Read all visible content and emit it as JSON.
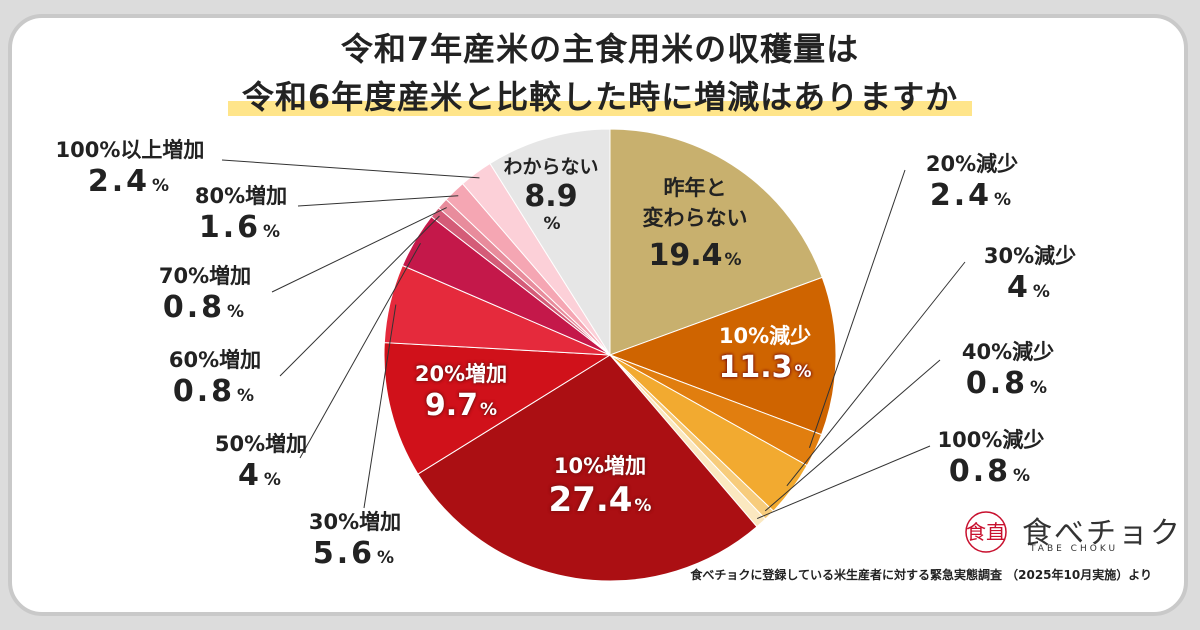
{
  "title_line1": "令和7年産米の主食用米の収穫量は",
  "title_line2": "令和6年度産米と比較した時に増減はありますか",
  "source": "食べチョクに登録している米生産者に対する緊急実態調査 （2025年10月実施）より",
  "logo": {
    "text": "食べチョク",
    "sub": "TABE CHOKU",
    "mark": "食直"
  },
  "chart_data": {
    "type": "pie",
    "unit": "%",
    "slices": [
      {
        "label": "昨年と変わらない",
        "value": 19.4,
        "color": "#c8b06e"
      },
      {
        "label": "10%減少",
        "value": 11.3,
        "color": "#cf6400"
      },
      {
        "label": "20%減少",
        "value": 2.4,
        "color": "#e17e0f"
      },
      {
        "label": "30%減少",
        "value": 4,
        "color": "#f2aa30"
      },
      {
        "label": "40%減少",
        "value": 0.8,
        "color": "#f7cc7c"
      },
      {
        "label": "100%減少",
        "value": 0.8,
        "color": "#fbe8c0"
      },
      {
        "label": "10%増加",
        "value": 27.4,
        "color": "#ab0f13"
      },
      {
        "label": "20%増加",
        "value": 9.7,
        "color": "#d0111a"
      },
      {
        "label": "30%増加",
        "value": 5.6,
        "color": "#e52a3c"
      },
      {
        "label": "50%増加",
        "value": 4,
        "color": "#c4184a"
      },
      {
        "label": "60%増加",
        "value": 0.8,
        "color": "#d45c78"
      },
      {
        "label": "70%増加",
        "value": 0.8,
        "color": "#e88c9c"
      },
      {
        "label": "80%増加",
        "value": 1.6,
        "color": "#f5a6b3"
      },
      {
        "label": "100%以上増加",
        "value": 2.4,
        "color": "#fcd0d8"
      },
      {
        "label": "わからない",
        "value": 8.9,
        "color": "#e6e6e6"
      }
    ]
  },
  "labels": {
    "unchanged": {
      "cat_a": "昨年と",
      "cat_b": "変わらない",
      "val": "19.4",
      "pct": "%"
    },
    "dec10": {
      "cat": "10%減少",
      "val": "11.3",
      "pct": "%"
    },
    "inc10": {
      "cat": "10%増加",
      "val": "27.4",
      "pct": "%"
    },
    "inc20": {
      "cat": "20%増加",
      "val": "9.7",
      "pct": "%"
    },
    "unknown": {
      "cat": "わからない",
      "val": "8.9",
      "pct": "%"
    },
    "dec20": {
      "cat": "20%減少",
      "val": "2.4",
      "pct": "%"
    },
    "dec30": {
      "cat": "30%減少",
      "val": "4",
      "pct": "%"
    },
    "dec40": {
      "cat": "40%減少",
      "val": "0.8",
      "pct": "%"
    },
    "dec100": {
      "cat": "100%減少",
      "val": "0.8",
      "pct": "%"
    },
    "inc100": {
      "cat": "100%以上増加",
      "val": "2.4",
      "pct": "%"
    },
    "inc80": {
      "cat": "80%増加",
      "val": "1.6",
      "pct": "%"
    },
    "inc70": {
      "cat": "70%増加",
      "val": "0.8",
      "pct": "%"
    },
    "inc60": {
      "cat": "60%増加",
      "val": "0.8",
      "pct": "%"
    },
    "inc50": {
      "cat": "50%増加",
      "val": "4",
      "pct": "%"
    },
    "inc30": {
      "cat": "30%増加",
      "val": "5.6",
      "pct": "%"
    }
  }
}
